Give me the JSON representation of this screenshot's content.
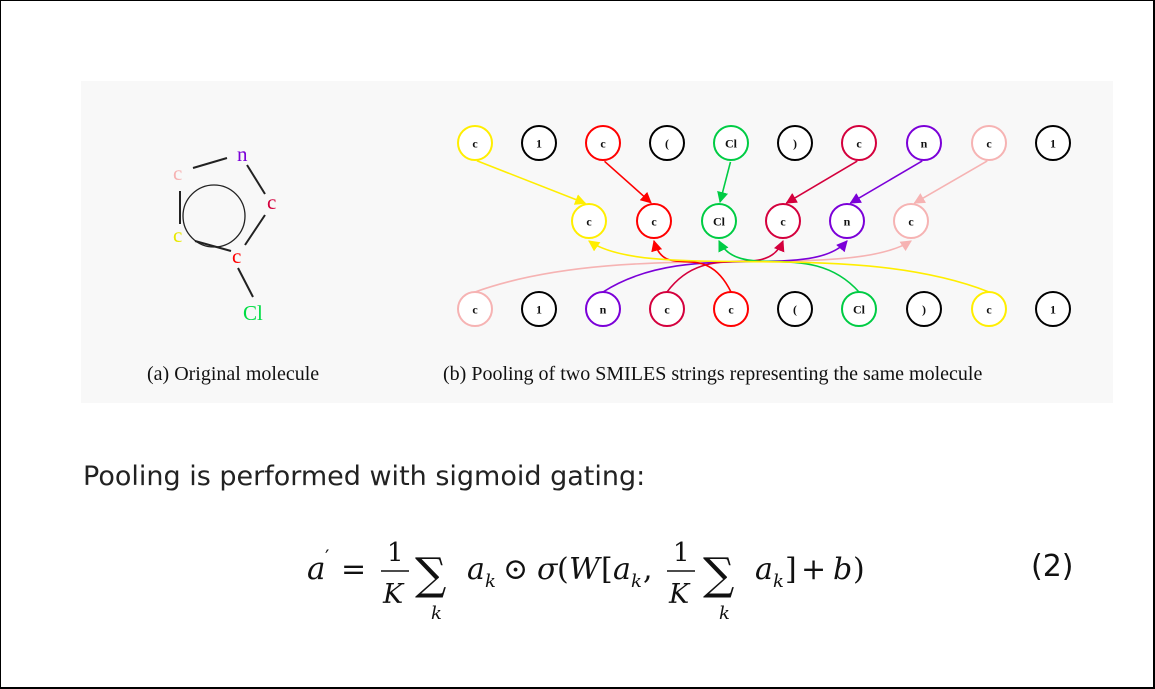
{
  "figure": {
    "molecule": {
      "atoms": [
        {
          "label": "n",
          "color": "#7b00d8"
        },
        {
          "label": "c",
          "color": "#d4003d"
        },
        {
          "label": "c",
          "color": "#ff0000"
        },
        {
          "label": "c",
          "color": "#e8e800"
        },
        {
          "label": "c",
          "color": "#f6b3b3"
        },
        {
          "label": "Cl",
          "color": "#00dd44"
        }
      ],
      "caption": "(a) Original molecule"
    },
    "pooling": {
      "top_tokens": [
        {
          "label": "c",
          "color": "#ffee00"
        },
        {
          "label": "1",
          "color": "#000000"
        },
        {
          "label": "c",
          "color": "#ff0000"
        },
        {
          "label": "(",
          "color": "#000000"
        },
        {
          "label": "Cl",
          "color": "#00cc44"
        },
        {
          "label": ")",
          "color": "#000000"
        },
        {
          "label": "c",
          "color": "#d4003d"
        },
        {
          "label": "n",
          "color": "#7b00d8"
        },
        {
          "label": "c",
          "color": "#f6b3b3"
        },
        {
          "label": "1",
          "color": "#000000"
        }
      ],
      "middle_tokens": [
        {
          "label": "c",
          "color": "#ffee00"
        },
        {
          "label": "c",
          "color": "#ff0000"
        },
        {
          "label": "Cl",
          "color": "#00cc44"
        },
        {
          "label": "c",
          "color": "#d4003d"
        },
        {
          "label": "n",
          "color": "#7b00d8"
        },
        {
          "label": "c",
          "color": "#f6b3b3"
        }
      ],
      "bottom_tokens": [
        {
          "label": "c",
          "color": "#f6b3b3"
        },
        {
          "label": "1",
          "color": "#000000"
        },
        {
          "label": "n",
          "color": "#7b00d8"
        },
        {
          "label": "c",
          "color": "#d4003d"
        },
        {
          "label": "c",
          "color": "#ff0000"
        },
        {
          "label": "(",
          "color": "#000000"
        },
        {
          "label": "Cl",
          "color": "#00cc44"
        },
        {
          "label": ")",
          "color": "#000000"
        },
        {
          "label": "c",
          "color": "#ffee00"
        },
        {
          "label": "1",
          "color": "#000000"
        }
      ],
      "caption": "(b) Pooling of two SMILES strings representing the same molecule"
    }
  },
  "text": {
    "intro": "Pooling is performed with sigmoid gating:",
    "equation_number": "(2)"
  }
}
